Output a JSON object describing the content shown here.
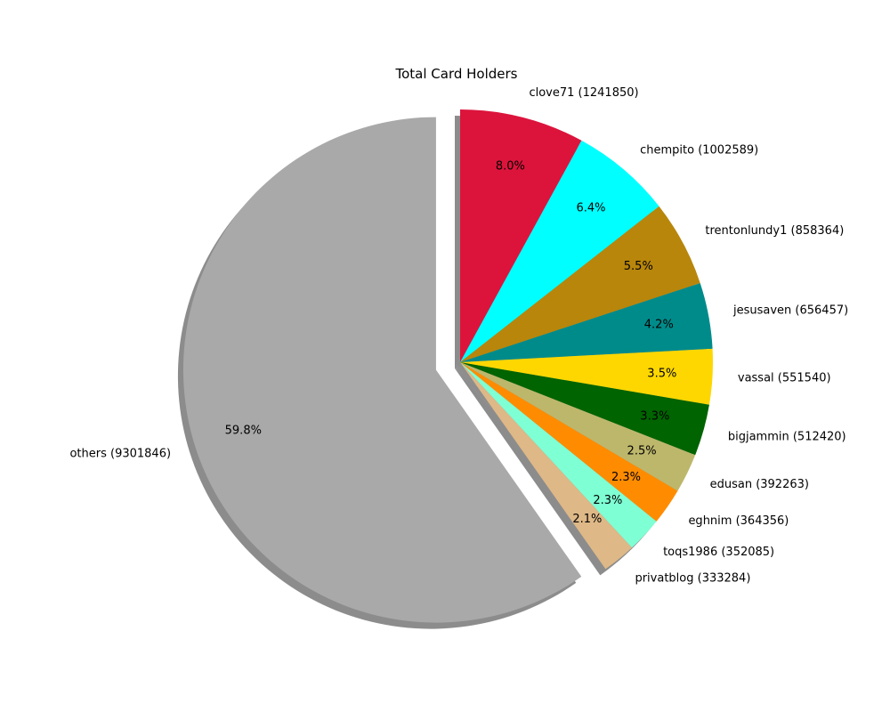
{
  "chart_data": {
    "type": "pie",
    "title": "Total Card Holders",
    "startangle_deg": 90,
    "direction": "clockwise",
    "shadow": true,
    "explode": [
      "others"
    ],
    "slices": [
      {
        "name": "clove71",
        "label": "clove71 (1241850)",
        "value": 1241850,
        "pct_label": "8.0%",
        "color": "#DC143C"
      },
      {
        "name": "chempito",
        "label": "chempito (1002589)",
        "value": 1002589,
        "pct_label": "6.4%",
        "color": "#00FFFF"
      },
      {
        "name": "trentonlundy1",
        "label": "trentonlundy1 (858364)",
        "value": 858364,
        "pct_label": "5.5%",
        "color": "#B8860B"
      },
      {
        "name": "jesusaven",
        "label": "jesusaven (656457)",
        "value": 656457,
        "pct_label": "4.2%",
        "color": "#008B8B"
      },
      {
        "name": "vassal",
        "label": "vassal (551540)",
        "value": 551540,
        "pct_label": "3.5%",
        "color": "#FFD700"
      },
      {
        "name": "bigjammin",
        "label": "bigjammin (512420)",
        "value": 512420,
        "pct_label": "3.3%",
        "color": "#006400"
      },
      {
        "name": "edusan",
        "label": "edusan (392263)",
        "value": 392263,
        "pct_label": "2.5%",
        "color": "#BDB76B"
      },
      {
        "name": "eghnim",
        "label": "eghnim (364356)",
        "value": 364356,
        "pct_label": "2.3%",
        "color": "#FF8C00"
      },
      {
        "name": "toqs1986",
        "label": "toqs1986 (352085)",
        "value": 352085,
        "pct_label": "2.3%",
        "color": "#7FFFD4"
      },
      {
        "name": "privatblog",
        "label": "privatblog (333284)",
        "value": 333284,
        "pct_label": "2.1%",
        "color": "#DEB887"
      },
      {
        "name": "others",
        "label": "others (9301846)",
        "value": 9301846,
        "pct_label": "59.8%",
        "color": "#A9A9A9"
      }
    ]
  }
}
